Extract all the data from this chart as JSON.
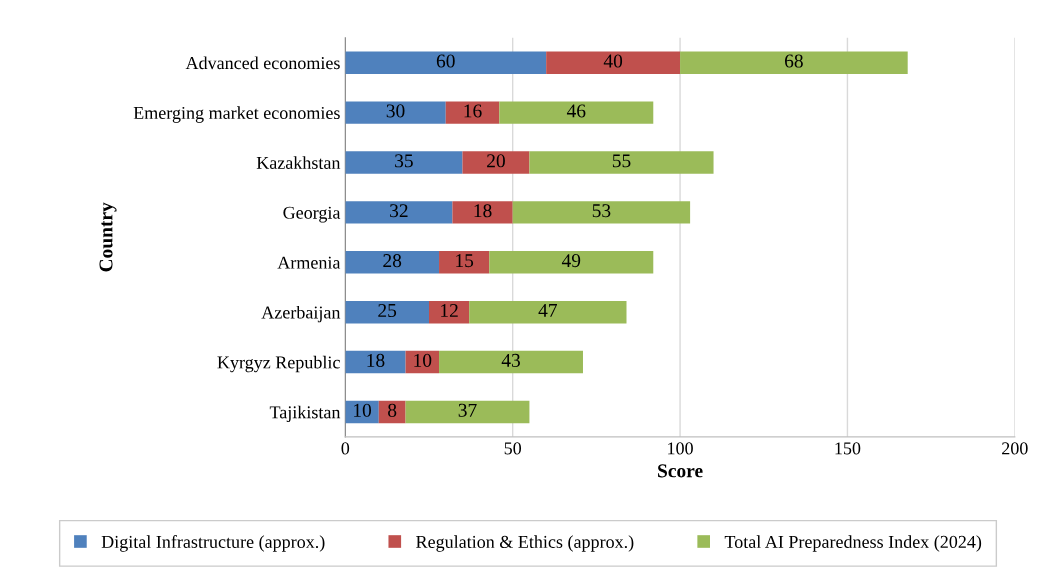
{
  "chart_data": {
    "type": "bar",
    "orientation": "horizontal",
    "stacked": true,
    "xlabel": "Score",
    "ylabel": "Country",
    "categories": [
      "Advanced economies",
      "Emerging market economies",
      "Kazakhstan",
      "Georgia",
      "Armenia",
      "Azerbaijan",
      "Kyrgyz Republic",
      "Tajikistan"
    ],
    "series": [
      {
        "name": "Digital Infrastructure (approx.)",
        "color": "#4f81bd",
        "values": [
          60,
          30,
          35,
          32,
          28,
          25,
          18,
          10
        ]
      },
      {
        "name": "Regulation & Ethics (approx.)",
        "color": "#c0504d",
        "values": [
          40,
          16,
          20,
          18,
          15,
          12,
          10,
          8
        ]
      },
      {
        "name": "Total AI Preparedness Index (2024)",
        "color": "#9bbb59",
        "values": [
          68,
          46,
          55,
          53,
          49,
          47,
          43,
          37
        ]
      }
    ],
    "xlim": [
      0,
      200
    ],
    "xticks": [
      0,
      50,
      100,
      150,
      200
    ],
    "grid": "x",
    "legend": "bottom",
    "data_labels": true
  }
}
